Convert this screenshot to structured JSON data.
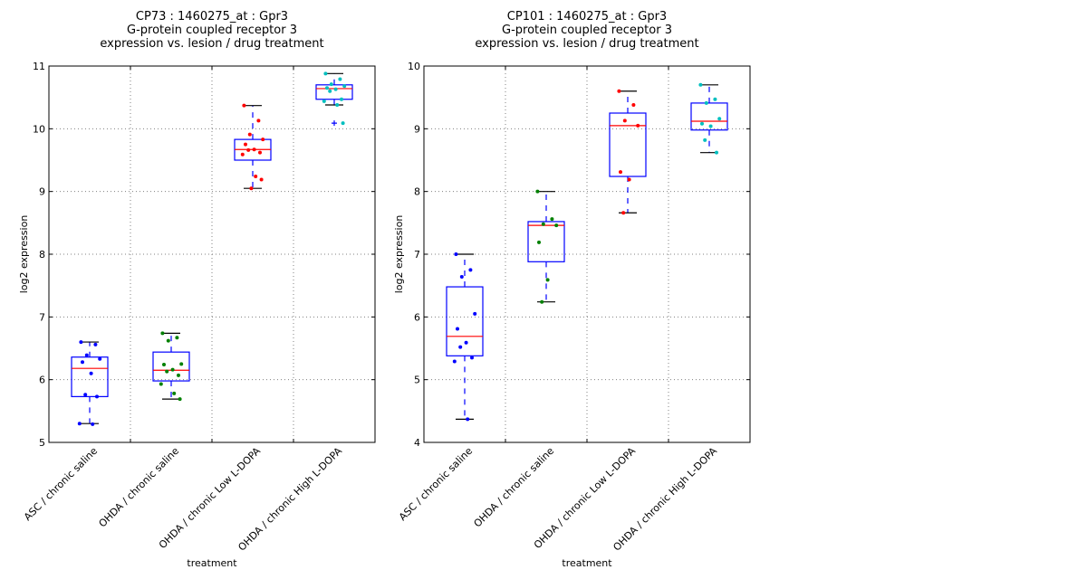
{
  "figure": {
    "background": "#ffffff",
    "box_color": "#0000ff",
    "median_color": "#ff0000",
    "whisker_cap_color": "#000000",
    "grid_color": "#808080"
  },
  "chart_data": [
    {
      "type": "box",
      "title_lines": [
        "CP73 : 1460275_at : Gpr3",
        "G-protein coupled receptor 3",
        "expression vs. lesion / drug treatment"
      ],
      "xlabel": "treatment",
      "ylabel": "log2 expression",
      "ylim": [
        5,
        11
      ],
      "yticks": [
        5,
        6,
        7,
        8,
        9,
        10,
        11
      ],
      "grid": true,
      "categories": [
        "ASC / chronic saline",
        "OHDA / chronic saline",
        "OHDA / chronic Low L-DOPA",
        "OHDA / chronic High L-DOPA"
      ],
      "groups": [
        {
          "color": "#0000ff",
          "q1": 5.73,
          "median": 6.18,
          "q3": 6.36,
          "whisker_low": 5.3,
          "whisker_high": 6.6,
          "outliers": [],
          "points": [
            6.6,
            6.56,
            6.39,
            6.33,
            6.28,
            6.1,
            5.76,
            5.73,
            5.3,
            5.29
          ]
        },
        {
          "color": "#008000",
          "q1": 5.98,
          "median": 6.15,
          "q3": 6.44,
          "whisker_low": 5.69,
          "whisker_high": 6.74,
          "outliers": [],
          "points": [
            6.74,
            6.67,
            6.62,
            6.25,
            6.24,
            6.16,
            6.13,
            6.07,
            5.93,
            5.78,
            5.69
          ]
        },
        {
          "color": "#ff0000",
          "q1": 9.5,
          "median": 9.67,
          "q3": 9.83,
          "whisker_low": 9.05,
          "whisker_high": 10.37,
          "outliers": [],
          "points": [
            10.37,
            10.13,
            9.91,
            9.83,
            9.75,
            9.67,
            9.66,
            9.62,
            9.59,
            9.24,
            9.19,
            9.05
          ]
        },
        {
          "color": "#00bfbf",
          "q1": 10.47,
          "median": 10.64,
          "q3": 10.7,
          "whisker_low": 10.38,
          "whisker_high": 10.88,
          "outliers": [
            10.09
          ],
          "points": [
            10.88,
            10.79,
            10.71,
            10.68,
            10.65,
            10.63,
            10.6,
            10.47,
            10.44,
            10.38,
            10.09
          ]
        }
      ]
    },
    {
      "type": "box",
      "title_lines": [
        "CP101 : 1460275_at : Gpr3",
        "G-protein coupled receptor 3",
        "expression vs. lesion / drug treatment"
      ],
      "xlabel": "treatment",
      "ylabel": "log2 expression",
      "ylim": [
        4,
        10
      ],
      "yticks": [
        4,
        5,
        6,
        7,
        8,
        9,
        10
      ],
      "grid": true,
      "categories": [
        "ASC / chronic saline",
        "OHDA / chronic saline",
        "OHDA / chronic Low L-DOPA",
        "OHDA / chronic High L-DOPA"
      ],
      "groups": [
        {
          "color": "#0000ff",
          "q1": 5.38,
          "median": 5.69,
          "q3": 6.48,
          "whisker_low": 4.37,
          "whisker_high": 7.0,
          "outliers": [],
          "points": [
            7.0,
            6.75,
            6.64,
            6.05,
            5.81,
            5.59,
            5.52,
            5.35,
            5.29,
            4.37
          ]
        },
        {
          "color": "#008000",
          "q1": 6.88,
          "median": 7.46,
          "q3": 7.52,
          "whisker_low": 6.24,
          "whisker_high": 8.0,
          "outliers": [],
          "points": [
            8.0,
            7.56,
            7.48,
            7.46,
            7.19,
            6.59,
            6.24
          ]
        },
        {
          "color": "#ff0000",
          "q1": 8.24,
          "median": 9.05,
          "q3": 9.25,
          "whisker_low": 7.66,
          "whisker_high": 9.6,
          "outliers": [],
          "points": [
            9.6,
            9.38,
            9.13,
            9.05,
            8.31,
            8.19,
            7.66
          ]
        },
        {
          "color": "#00bfbf",
          "q1": 8.98,
          "median": 9.12,
          "q3": 9.41,
          "whisker_low": 8.62,
          "whisker_high": 9.7,
          "outliers": [],
          "points": [
            9.7,
            9.47,
            9.41,
            9.16,
            9.08,
            9.04,
            8.82,
            8.62
          ]
        }
      ]
    }
  ]
}
